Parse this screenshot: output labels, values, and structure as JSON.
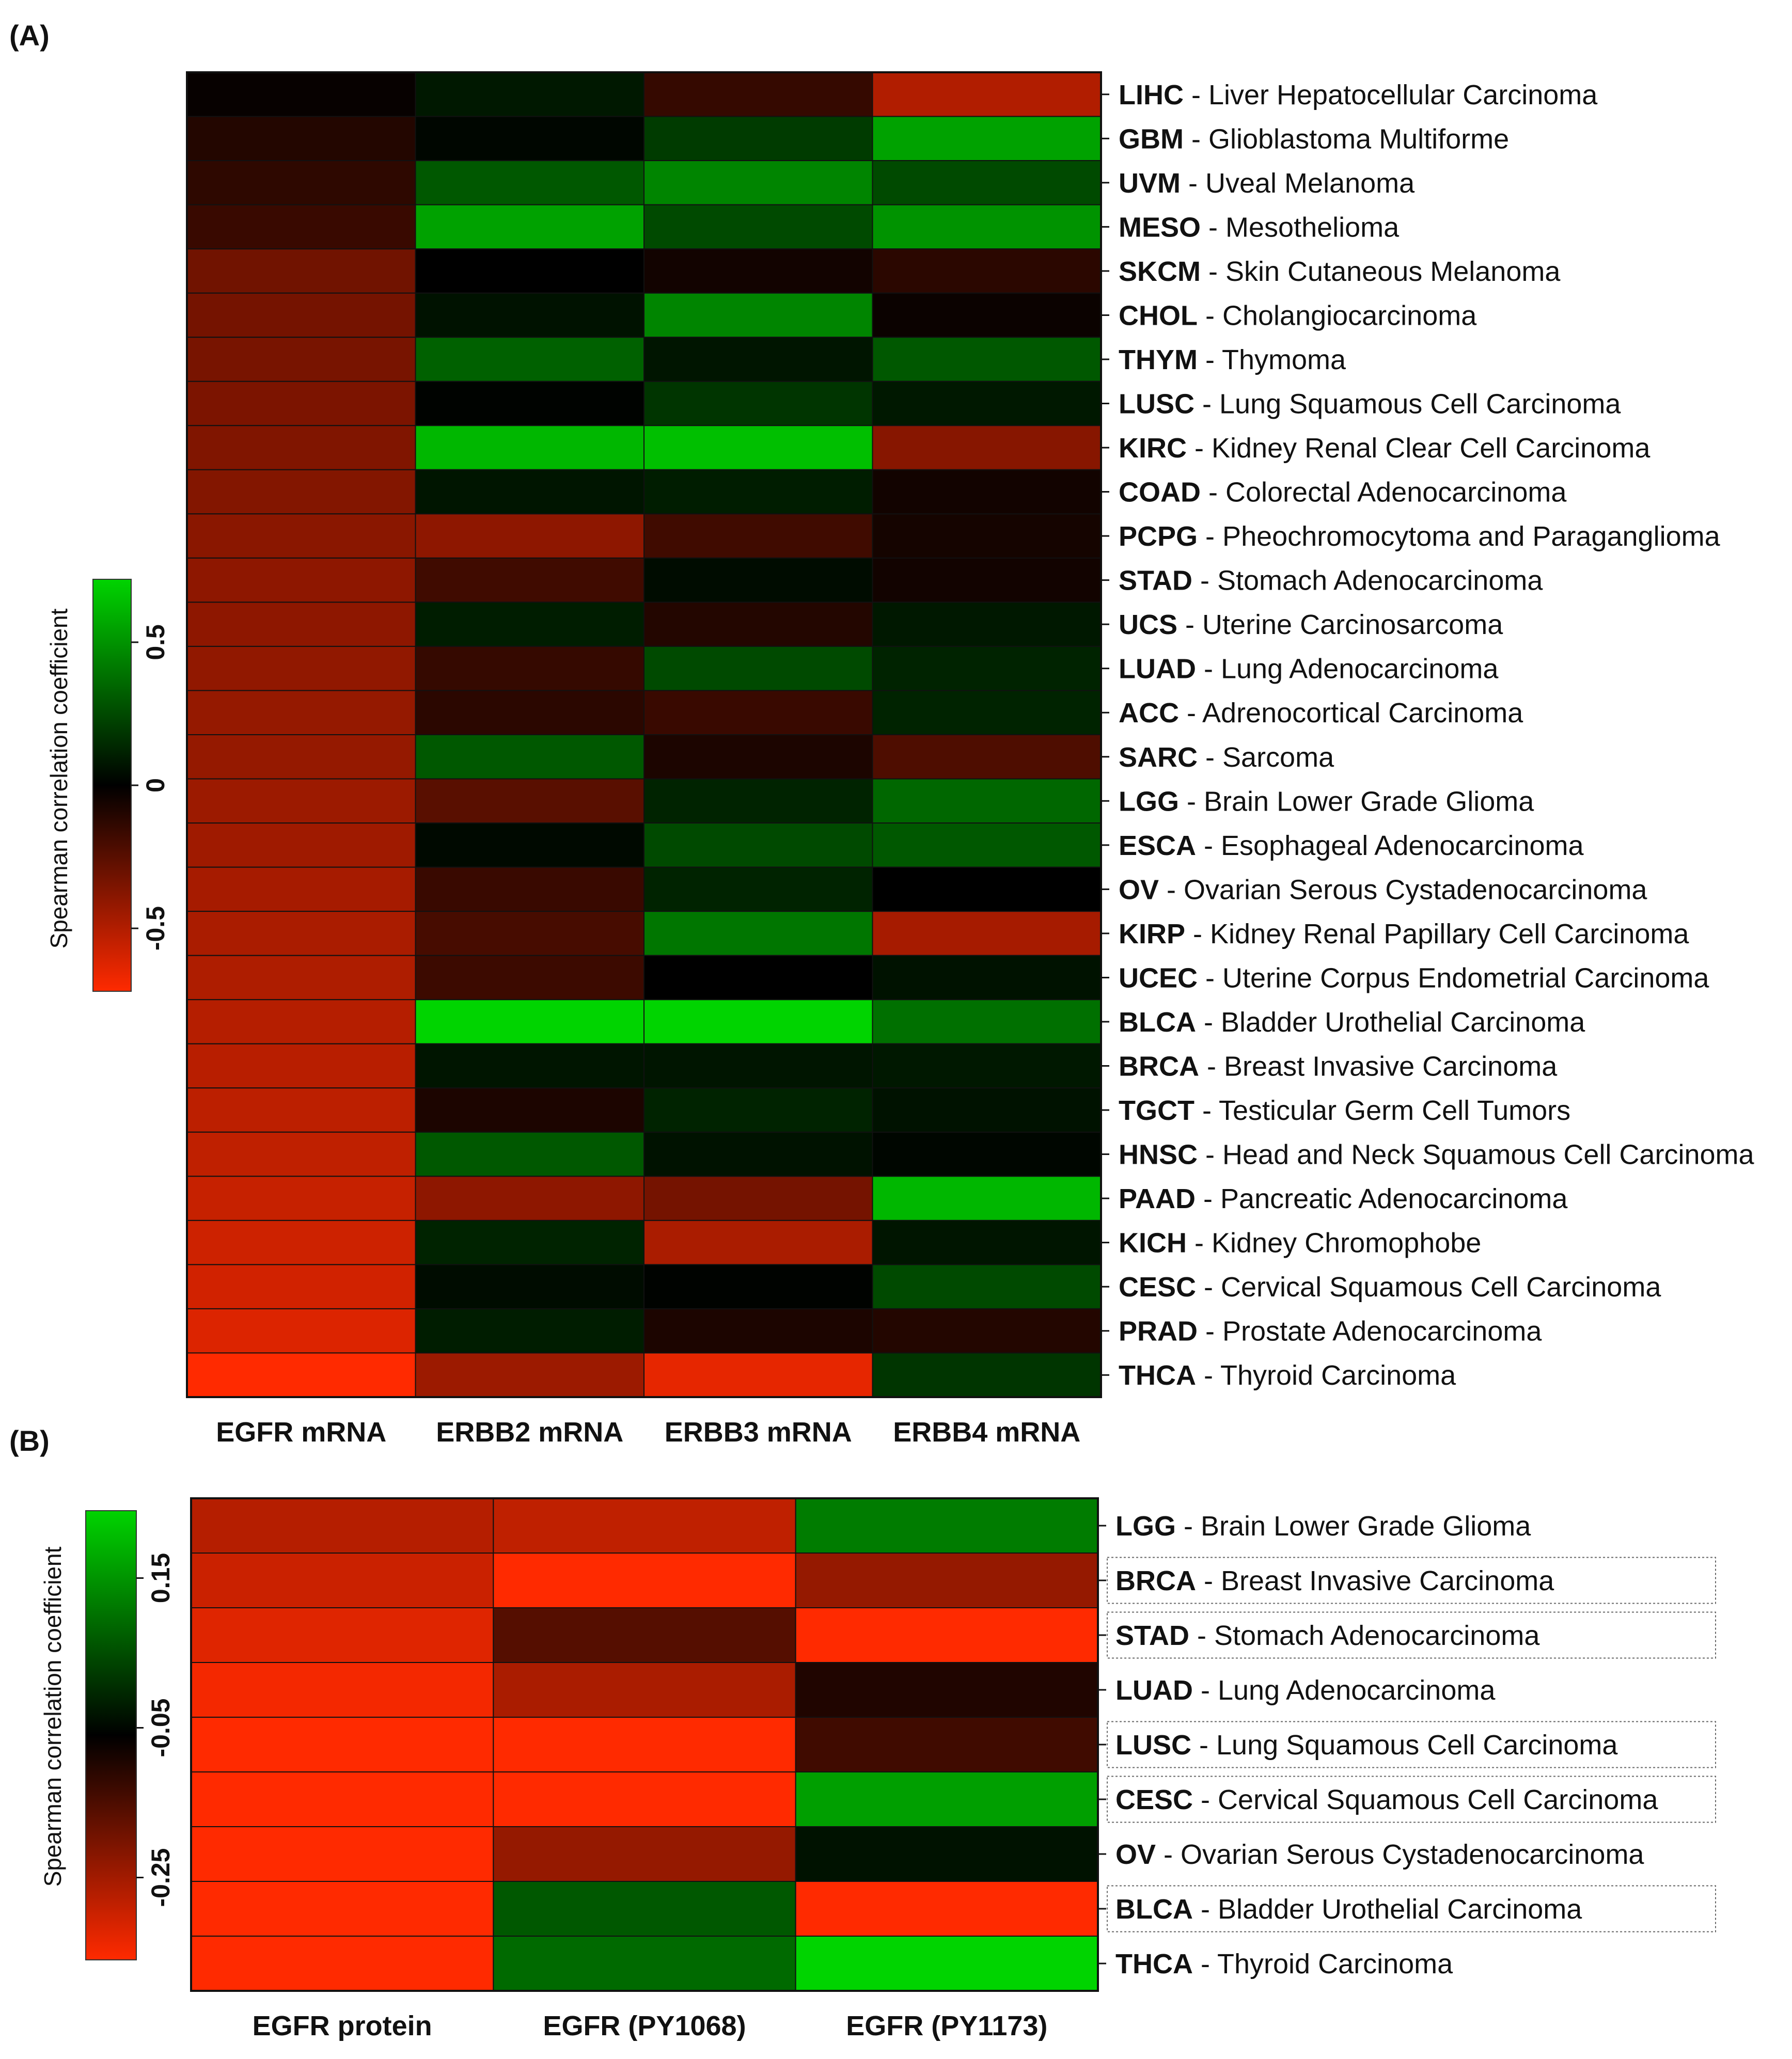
{
  "chart_data": [
    {
      "panel_label": "(A)",
      "type": "heatmap",
      "columns": [
        "EGFR mRNA",
        "ERBB2 mRNA",
        "ERBB3 mRNA",
        "ERBB4 mRNA"
      ],
      "rows": [
        {
          "code": "LIHC",
          "name": "Liver Hepatocellular Carcinoma"
        },
        {
          "code": "GBM",
          "name": "Glioblastoma Multiforme"
        },
        {
          "code": "UVM",
          "name": "Uveal Melanoma"
        },
        {
          "code": "MESO",
          "name": "Mesothelioma"
        },
        {
          "code": "SKCM",
          "name": "Skin Cutaneous Melanoma"
        },
        {
          "code": "CHOL",
          "name": "Cholangiocarcinoma"
        },
        {
          "code": "THYM",
          "name": "Thymoma"
        },
        {
          "code": "LUSC",
          "name": "Lung Squamous Cell Carcinoma"
        },
        {
          "code": "KIRC",
          "name": "Kidney Renal Clear Cell Carcinoma"
        },
        {
          "code": "COAD",
          "name": "Colorectal Adenocarcinoma"
        },
        {
          "code": "PCPG",
          "name": "Pheochromocytoma and Paraganglioma"
        },
        {
          "code": "STAD",
          "name": "Stomach Adenocarcinoma"
        },
        {
          "code": "UCS",
          "name": "Uterine Carcinosarcoma"
        },
        {
          "code": "LUAD",
          "name": "Lung Adenocarcinoma"
        },
        {
          "code": "ACC",
          "name": "Adrenocortical Carcinoma"
        },
        {
          "code": "SARC",
          "name": "Sarcoma"
        },
        {
          "code": "LGG",
          "name": "Brain Lower Grade Glioma"
        },
        {
          "code": "ESCA",
          "name": "Esophageal Adenocarcinoma"
        },
        {
          "code": "OV",
          "name": "Ovarian Serous Cystadenocarcinoma"
        },
        {
          "code": "KIRP",
          "name": "Kidney Renal Papillary Cell Carcinoma"
        },
        {
          "code": "UCEC",
          "name": "Uterine Corpus Endometrial Carcinoma"
        },
        {
          "code": "BLCA",
          "name": "Bladder Urothelial Carcinoma"
        },
        {
          "code": "BRCA",
          "name": "Breast Invasive Carcinoma"
        },
        {
          "code": "TGCT",
          "name": "Testicular Germ Cell Tumors"
        },
        {
          "code": "HNSC",
          "name": "Head and Neck Squamous Cell Carcinoma"
        },
        {
          "code": "PAAD",
          "name": "Pancreatic Adenocarcinoma"
        },
        {
          "code": "KICH",
          "name": "Kidney Chromophobe"
        },
        {
          "code": "CESC",
          "name": "Cervical Squamous Cell Carcinoma"
        },
        {
          "code": "PRAD",
          "name": "Prostate Adenocarcinoma"
        },
        {
          "code": "THCA",
          "name": "Thyroid Carcinoma"
        }
      ],
      "values": [
        [
          -0.02,
          0.08,
          -0.15,
          -0.5
        ],
        [
          -0.1,
          0.02,
          0.2,
          0.55
        ],
        [
          -0.13,
          0.3,
          0.45,
          0.25
        ],
        [
          -0.16,
          0.55,
          0.25,
          0.5
        ],
        [
          -0.32,
          0.0,
          -0.05,
          -0.12
        ],
        [
          -0.33,
          0.06,
          0.45,
          -0.03
        ],
        [
          -0.34,
          0.33,
          0.07,
          0.3
        ],
        [
          -0.35,
          0.01,
          0.18,
          0.08
        ],
        [
          -0.36,
          0.62,
          0.65,
          -0.38
        ],
        [
          -0.37,
          0.07,
          0.1,
          -0.05
        ],
        [
          -0.39,
          -0.4,
          -0.18,
          -0.06
        ],
        [
          -0.4,
          -0.18,
          0.04,
          -0.05
        ],
        [
          -0.4,
          0.1,
          -0.1,
          0.08
        ],
        [
          -0.41,
          -0.15,
          0.25,
          0.12
        ],
        [
          -0.42,
          -0.12,
          -0.16,
          0.12
        ],
        [
          -0.42,
          0.3,
          -0.08,
          -0.22
        ],
        [
          -0.44,
          -0.25,
          0.12,
          0.35
        ],
        [
          -0.45,
          0.03,
          0.25,
          0.3
        ],
        [
          -0.47,
          -0.16,
          0.12,
          0.0
        ],
        [
          -0.48,
          -0.2,
          0.4,
          -0.47
        ],
        [
          -0.49,
          -0.17,
          0.0,
          0.06
        ],
        [
          -0.51,
          0.78,
          0.8,
          0.38
        ],
        [
          -0.52,
          0.07,
          0.07,
          0.08
        ],
        [
          -0.53,
          -0.08,
          0.12,
          0.06
        ],
        [
          -0.54,
          0.3,
          0.06,
          0.02
        ],
        [
          -0.56,
          -0.4,
          -0.33,
          0.62
        ],
        [
          -0.58,
          0.12,
          -0.48,
          0.07
        ],
        [
          -0.59,
          0.04,
          0.01,
          0.25
        ],
        [
          -0.62,
          0.1,
          -0.08,
          -0.1
        ],
        [
          -0.72,
          -0.44,
          -0.65,
          0.18
        ]
      ],
      "colorbar": {
        "title": "Spearman correlation coefficient",
        "ticks": [
          "0.5",
          "0",
          "-0.5"
        ],
        "tick_values": [
          0.5,
          0,
          -0.5
        ],
        "range": [
          -0.72,
          0.72
        ]
      }
    },
    {
      "panel_label": "(B)",
      "type": "heatmap",
      "columns": [
        "EGFR protein",
        "EGFR (PY1068)",
        "EGFR (PY1173)"
      ],
      "rows": [
        {
          "code": "LGG",
          "name": "Brain Lower Grade Glioma",
          "boxed": false
        },
        {
          "code": "BRCA",
          "name": "Breast Invasive Carcinoma",
          "boxed": true
        },
        {
          "code": "STAD",
          "name": "Stomach Adenocarcinoma",
          "boxed": true
        },
        {
          "code": "LUAD",
          "name": "Lung Adenocarcinoma",
          "boxed": false
        },
        {
          "code": "LUSC",
          "name": "Lung Squamous Cell Carcinoma",
          "boxed": true
        },
        {
          "code": "CESC",
          "name": "Cervical Squamous Cell Carcinoma",
          "boxed": true
        },
        {
          "code": "OV",
          "name": "Ovarian Serous Cystadenocarcinoma",
          "boxed": false
        },
        {
          "code": "BLCA",
          "name": "Bladder Urothelial Carcinoma",
          "boxed": true
        },
        {
          "code": "THCA",
          "name": "Thyroid Carcinoma",
          "boxed": false
        }
      ],
      "values": [
        [
          -0.17,
          -0.18,
          0.14
        ],
        [
          -0.19,
          -0.27,
          -0.14
        ],
        [
          -0.21,
          -0.08,
          -0.27
        ],
        [
          -0.23,
          -0.16,
          -0.03
        ],
        [
          -0.24,
          -0.25,
          -0.06
        ],
        [
          -0.25,
          -0.26,
          0.18
        ],
        [
          -0.28,
          -0.14,
          0.02
        ],
        [
          -0.37,
          0.1,
          -0.25
        ],
        [
          -0.38,
          0.12,
          0.3
        ]
      ],
      "colorbar": {
        "title": "Spearman correlation coefficient",
        "ticks": [
          "0.15",
          "-0.05",
          "-0.25"
        ],
        "tick_values": [
          0.15,
          -0.05,
          -0.25
        ],
        "range": [
          -0.36,
          0.24
        ]
      }
    }
  ]
}
